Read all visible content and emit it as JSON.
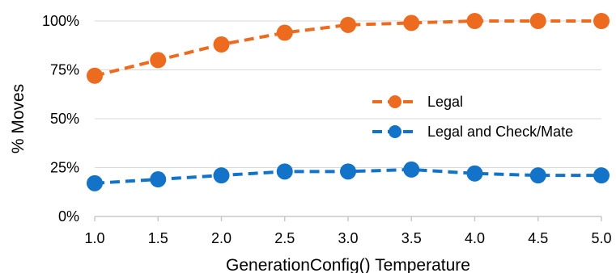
{
  "chart_data": {
    "type": "line",
    "xlabel": "GenerationConfig() Temperature",
    "ylabel": "% Moves",
    "x": [
      "1.0",
      "1.5",
      "2.0",
      "2.5",
      "3.0",
      "3.5",
      "4.0",
      "4.5",
      "5.0"
    ],
    "ylim": [
      0,
      100
    ],
    "yticks": [
      "0%",
      "25%",
      "50%",
      "75%",
      "100%"
    ],
    "grid": true,
    "legend": "center-right",
    "series": [
      {
        "name": "Legal",
        "color": "#ED6B1F",
        "line_style": "dashed",
        "marker": "circle",
        "values": [
          72,
          80,
          88,
          94,
          98,
          99,
          100,
          100,
          100
        ]
      },
      {
        "name": "Legal and Check/Mate",
        "color": "#1273C9",
        "line_style": "dashed",
        "marker": "circle",
        "values": [
          17,
          19,
          21,
          23,
          23,
          24,
          22,
          21,
          21
        ]
      }
    ]
  }
}
